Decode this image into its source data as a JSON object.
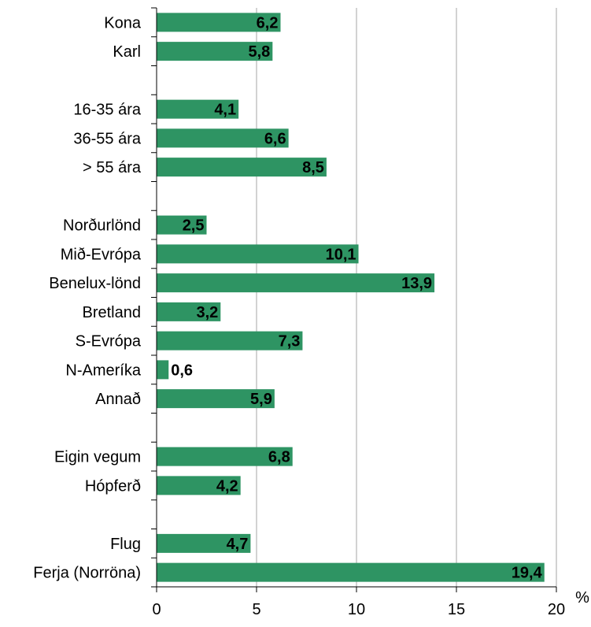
{
  "chart_data": {
    "type": "bar",
    "orientation": "horizontal",
    "categories": [
      "Kona",
      "Karl",
      "",
      "16-35 ára",
      "36-55 ára",
      "> 55 ára",
      "",
      "Norðurlönd",
      "Mið-Evrópa",
      "Benelux-lönd",
      "Bretland",
      "S-Evrópa",
      "N-Ameríka",
      "Annað",
      "",
      "Eigin vegum",
      "Hópferð",
      "",
      "Flug",
      "Ferja (Norröna)"
    ],
    "values": [
      6.2,
      5.8,
      null,
      4.1,
      6.6,
      8.5,
      null,
      2.5,
      10.1,
      13.9,
      3.2,
      7.3,
      0.6,
      5.9,
      null,
      6.8,
      4.2,
      null,
      4.7,
      19.4
    ],
    "value_labels": [
      "6,2",
      "5,8",
      "",
      "4,1",
      "6,6",
      "8,5",
      "",
      "2,5",
      "10,1",
      "13,9",
      "3,2",
      "7,3",
      "0,6",
      "5,9",
      "",
      "6,8",
      "4,2",
      "",
      "4,7",
      "19,4"
    ],
    "xlim": [
      0,
      20
    ],
    "xticks": [
      0,
      5,
      10,
      15,
      20
    ],
    "x_unit": "%",
    "grid": "vertical",
    "legend": "none",
    "colors": {
      "bar": "#2e9463",
      "grid": "#a6a6a6",
      "axis": "#000000",
      "text": "#000000"
    }
  }
}
